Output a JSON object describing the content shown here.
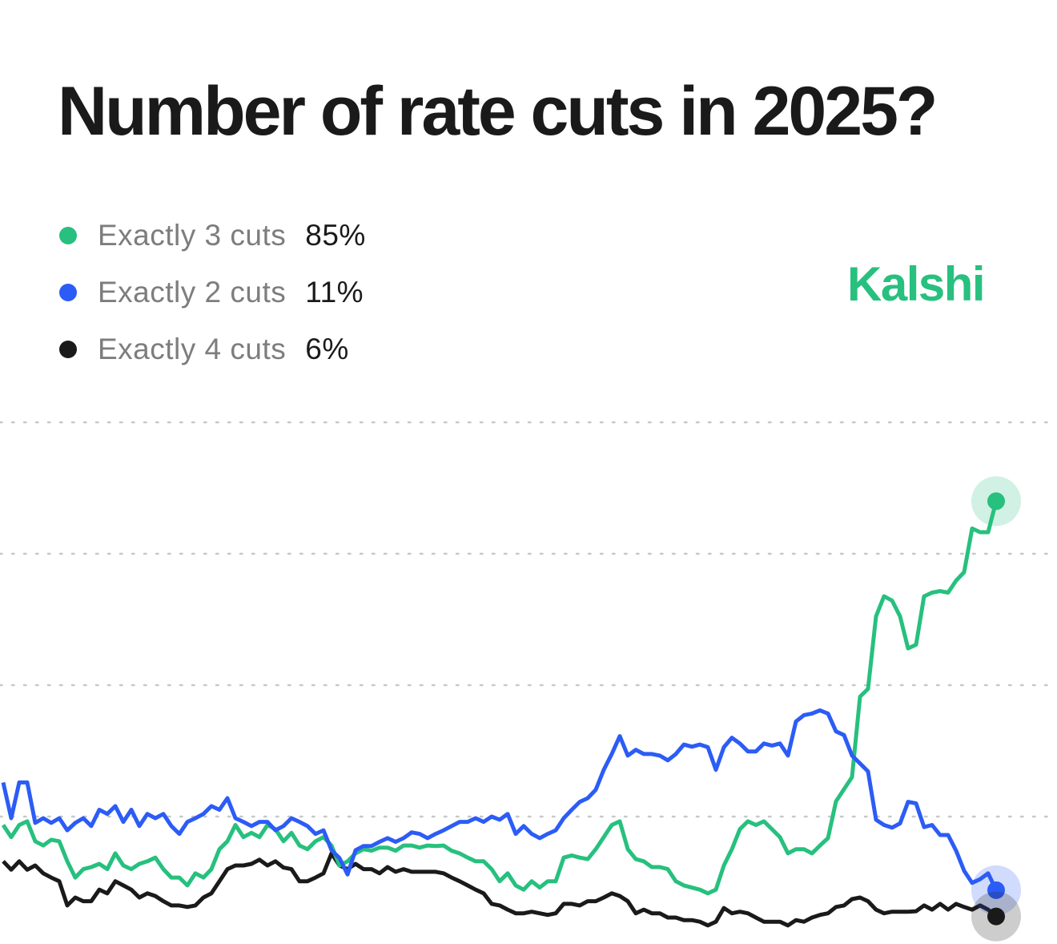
{
  "header": {
    "title": "Number of rate cuts in 2025?",
    "brand": "Kalshi"
  },
  "legend": [
    {
      "label": "Exactly 3 cuts",
      "value": "85%",
      "color": "#27c07e"
    },
    {
      "label": "Exactly 2 cuts",
      "value": "11%",
      "color": "#2c5cf6"
    },
    {
      "label": "Exactly 4 cuts",
      "value": "6%",
      "color": "#1a1a1a"
    }
  ],
  "chart_data": {
    "type": "line",
    "title": "Number of rate cuts in 2025?",
    "xlabel": "",
    "ylabel": "",
    "ylim": [
      0,
      100
    ],
    "gridlines": [
      25,
      50,
      75,
      100
    ],
    "grid": true,
    "legend_position": "top-left",
    "series": [
      {
        "name": "Exactly 3 cuts",
        "color": "#27c07e",
        "last_value": 85,
        "values": [
          23.4,
          21.1,
          23.4,
          24.1,
          20.3,
          19.5,
          20.6,
          20.3,
          16.5,
          13.4,
          15.0,
          15.4,
          16.0,
          15.0,
          18.0,
          15.7,
          15.0,
          16.0,
          16.5,
          17.2,
          15.0,
          13.4,
          13.4,
          11.9,
          14.2,
          13.4,
          15.0,
          18.8,
          20.3,
          23.4,
          21.1,
          21.9,
          21.1,
          23.4,
          22.6,
          20.3,
          21.9,
          19.5,
          18.8,
          20.3,
          21.1,
          19.5,
          15.7,
          16.5,
          18.0,
          18.8,
          18.5,
          19.1,
          19.1,
          18.5,
          19.5,
          19.5,
          19.1,
          19.5,
          19.4,
          19.5,
          18.5,
          18.0,
          17.2,
          16.5,
          16.5,
          15.0,
          12.7,
          14.2,
          11.9,
          11.1,
          12.7,
          11.5,
          12.7,
          12.7,
          17.2,
          17.6,
          17.2,
          16.9,
          18.8,
          21.1,
          23.4,
          24.1,
          18.8,
          16.9,
          16.5,
          15.4,
          15.4,
          15.0,
          12.7,
          11.9,
          11.5,
          11.1,
          10.4,
          11.1,
          15.7,
          18.8,
          22.6,
          24.1,
          23.4,
          24.1,
          22.6,
          21.1,
          18.0,
          18.8,
          18.8,
          18.0,
          19.5,
          20.9,
          27.9,
          30.2,
          32.5,
          47.8,
          49.3,
          63.1,
          66.9,
          66.1,
          63.1,
          57.0,
          57.7,
          66.9,
          67.6,
          67.9,
          67.6,
          69.9,
          71.5,
          79.8,
          79.1,
          79.1,
          85.0
        ]
      },
      {
        "name": "Exactly 2 cuts",
        "color": "#2c5cf6",
        "last_value": 11,
        "values": [
          31.5,
          24.7,
          31.5,
          31.5,
          23.8,
          24.7,
          23.8,
          24.7,
          22.4,
          23.8,
          24.7,
          23.2,
          26.3,
          25.5,
          27.0,
          24.0,
          26.3,
          23.2,
          25.5,
          24.7,
          25.5,
          23.2,
          21.7,
          24.0,
          24.7,
          25.5,
          27.0,
          26.3,
          28.5,
          24.7,
          24.0,
          23.2,
          24.0,
          24.0,
          22.4,
          23.2,
          24.7,
          24.0,
          23.2,
          21.7,
          22.4,
          18.6,
          17.1,
          14.0,
          18.6,
          19.4,
          19.4,
          20.2,
          20.9,
          20.2,
          20.9,
          22.0,
          21.7,
          20.9,
          21.7,
          22.4,
          23.2,
          24.0,
          24.0,
          24.7,
          24.0,
          25.0,
          24.4,
          25.5,
          21.7,
          23.2,
          21.7,
          20.9,
          21.7,
          22.4,
          24.7,
          26.3,
          27.8,
          28.5,
          30.1,
          33.9,
          36.9,
          40.3,
          36.6,
          37.7,
          36.9,
          36.9,
          36.6,
          35.7,
          36.9,
          38.7,
          38.3,
          38.7,
          38.2,
          33.9,
          38.2,
          40.0,
          38.9,
          37.4,
          37.4,
          38.9,
          38.5,
          38.9,
          36.6,
          43.1,
          44.3,
          44.6,
          45.2,
          44.6,
          41.2,
          40.5,
          36.6,
          35.1,
          33.6,
          24.4,
          23.4,
          22.9,
          23.7,
          27.8,
          27.5,
          23.0,
          23.4,
          21.5,
          21.5,
          18.5,
          14.7,
          12.4,
          13.1,
          14.2,
          11.0
        ]
      },
      {
        "name": "Exactly 4 cuts",
        "color": "#1a1a1a",
        "last_value": 6,
        "values": [
          16.5,
          14.9,
          16.5,
          14.9,
          15.7,
          14.2,
          13.4,
          12.7,
          8.1,
          9.6,
          8.9,
          8.9,
          11.1,
          10.4,
          12.7,
          11.9,
          11.1,
          9.6,
          10.4,
          9.9,
          8.9,
          8.1,
          8.1,
          7.8,
          8.1,
          9.6,
          10.4,
          12.7,
          15.0,
          15.7,
          15.7,
          16.0,
          16.8,
          15.7,
          16.5,
          15.3,
          15.0,
          12.7,
          12.7,
          13.4,
          14.2,
          18.0,
          15.7,
          15.0,
          16.0,
          15.0,
          15.0,
          14.2,
          15.4,
          14.5,
          15.0,
          14.5,
          14.5,
          14.5,
          14.5,
          14.2,
          13.4,
          12.7,
          11.9,
          11.1,
          10.4,
          8.4,
          8.1,
          7.3,
          6.6,
          6.6,
          6.9,
          6.6,
          6.3,
          6.6,
          8.4,
          8.4,
          8.1,
          8.9,
          8.9,
          9.6,
          10.4,
          9.9,
          8.9,
          6.6,
          7.3,
          6.6,
          6.6,
          5.8,
          5.8,
          5.3,
          5.3,
          5.0,
          4.3,
          5.0,
          7.6,
          6.6,
          6.9,
          6.6,
          5.8,
          5.0,
          5.0,
          5.0,
          4.3,
          5.3,
          5.0,
          5.8,
          6.3,
          6.6,
          7.8,
          8.1,
          9.3,
          9.6,
          8.9,
          7.3,
          6.6,
          6.9,
          6.9,
          6.9,
          7.0,
          8.1,
          7.3,
          8.4,
          7.3,
          8.4,
          7.8,
          7.3,
          8.1,
          7.3,
          6.0
        ]
      }
    ]
  }
}
